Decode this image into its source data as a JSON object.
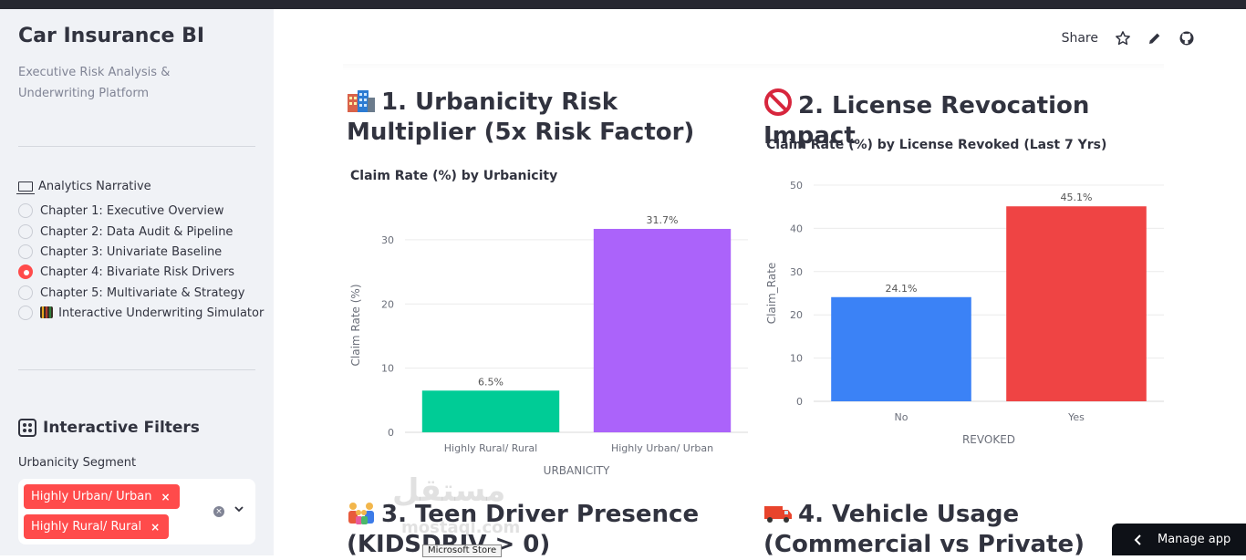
{
  "sidebar": {
    "title": "Car Insurance BI",
    "subtitle": "Executive Risk Analysis & Underwriting Platform",
    "nav_heading": "Analytics Narrative",
    "nav_items": [
      {
        "label": "Chapter 1: Executive Overview",
        "selected": false
      },
      {
        "label": "Chapter 2: Data Audit & Pipeline",
        "selected": false
      },
      {
        "label": "Chapter 3: Univariate Baseline",
        "selected": false
      },
      {
        "label": "Chapter 4: Bivariate Risk Drivers",
        "selected": true
      },
      {
        "label": "Chapter 5: Multivariate & Strategy",
        "selected": false
      },
      {
        "label": "Interactive Underwriting Simulator",
        "selected": false
      }
    ],
    "filters_heading": "Interactive Filters",
    "segment_label": "Urbanicity Segment",
    "segment_tags": [
      "Highly Urban/ Urban",
      "Highly Rural/ Rural"
    ],
    "remove_glyph": "×",
    "clear_glyph": "×"
  },
  "header": {
    "share_label": "Share",
    "icons": [
      "star-icon",
      "pencil-icon",
      "github-icon"
    ]
  },
  "sections": {
    "s1_title": "1. Urbanicity Risk Multiplier (5x Risk Factor)",
    "s2_title": "2. License Revocation Impact",
    "s3_title": "3. Teen Driver Presence (KIDSDRIV > 0)",
    "s4_title": "4. Vehicle Usage (Commercial vs Private)"
  },
  "chart_data": [
    {
      "type": "bar",
      "title": "Claim Rate (%) by Urbanicity",
      "xlabel": "URBANICITY",
      "ylabel": "Claim Rate (%)",
      "categories": [
        "Highly Rural/ Rural",
        "Highly Urban/ Urban"
      ],
      "values": [
        6.5,
        31.7
      ],
      "data_labels": [
        "6.5%",
        "31.7%"
      ],
      "colors": [
        "#00cc96",
        "#ab63fa"
      ],
      "yticks": [
        0,
        10,
        20,
        30
      ],
      "ylim": [
        0,
        33.4
      ],
      "grid": true
    },
    {
      "type": "bar",
      "title": "Claim Rate (%) by License Revoked (Last 7 Yrs)",
      "xlabel": "REVOKED",
      "ylabel": "Claim_Rate",
      "categories": [
        "No",
        "Yes"
      ],
      "values": [
        24.1,
        45.1
      ],
      "data_labels": [
        "24.1%",
        "45.1%"
      ],
      "colors": [
        "#3b82f6",
        "#ef4444"
      ],
      "yticks": [
        0,
        10,
        20,
        30,
        40,
        50
      ],
      "ylim": [
        0,
        50
      ],
      "grid": true
    }
  ],
  "overlay": {
    "watermark": "مستقل",
    "watermark_sub": "mostaql.com",
    "tooltip": "Microsoft Store",
    "manage_app_label": "Manage app"
  }
}
